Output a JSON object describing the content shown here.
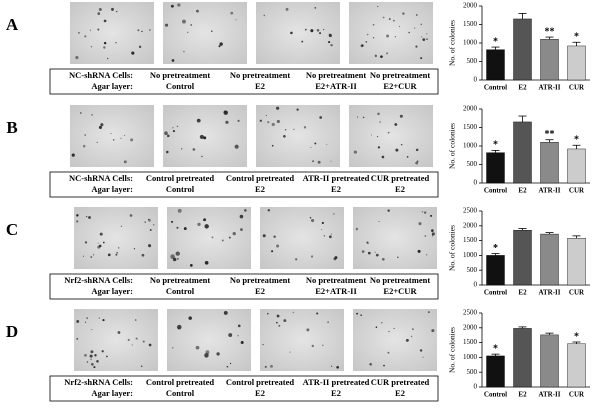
{
  "panels": [
    {
      "letter": "A",
      "cells_label": "NC-shRNA Cells:",
      "agar_label": "Agar layer:",
      "columns": [
        [
          "No pretreatment",
          "Control"
        ],
        [
          "No pretreatment",
          "E2"
        ],
        [
          "No pretreatment",
          "E2+ATR-II"
        ],
        [
          "No pretreatment",
          "E2+CUR"
        ]
      ]
    },
    {
      "letter": "B",
      "cells_label": "NC-shRNA Cells:",
      "agar_label": "Agar layer:",
      "columns": [
        [
          "Control pretreated",
          "Control"
        ],
        [
          "Control pretreated",
          "E2"
        ],
        [
          "ATR-II pretreated",
          "E2"
        ],
        [
          "CUR pretreated",
          "E2"
        ]
      ]
    },
    {
      "letter": "C",
      "cells_label": "Nrf2-shRNA Cells:",
      "agar_label": "Agar layer:",
      "columns": [
        [
          "No pretreatment",
          "Control"
        ],
        [
          "No pretreatment",
          "E2"
        ],
        [
          "No pretreatment",
          "E2+ATR-II"
        ],
        [
          "No pretreatment",
          "E2+CUR"
        ]
      ]
    },
    {
      "letter": "D",
      "cells_label": "Nrf2-shRNA Cells:",
      "agar_label": "Agar layer:",
      "columns": [
        [
          "Control pretreated",
          "Control"
        ],
        [
          "Control pretreated",
          "E2"
        ],
        [
          "ATR-II pretreated",
          "E2"
        ],
        [
          "CUR pretreated",
          "E2"
        ]
      ]
    }
  ],
  "chart_data": [
    {
      "type": "bar",
      "ylabel": "No. of colonies",
      "categories": [
        "Control",
        "E2",
        "ATR-II",
        "CUR"
      ],
      "colors": [
        "#111111",
        "#555555",
        "#8a8a8a",
        "#cccccc"
      ],
      "values": [
        820,
        1650,
        1100,
        920
      ],
      "errors": [
        70,
        150,
        60,
        100
      ],
      "annotations": [
        "*",
        null,
        "**",
        "*"
      ],
      "ylim": [
        0,
        2000
      ],
      "yticks": [
        0,
        500,
        1000,
        1500,
        2000
      ]
    },
    {
      "type": "bar",
      "ylabel": "No. of colonies",
      "categories": [
        "Control",
        "E2",
        "ATR-II",
        "CUR"
      ],
      "colors": [
        "#111111",
        "#555555",
        "#8a8a8a",
        "#cccccc"
      ],
      "values": [
        820,
        1650,
        1100,
        920
      ],
      "errors": [
        60,
        160,
        70,
        100
      ],
      "annotations": [
        "*",
        null,
        "**",
        "*"
      ],
      "ylim": [
        0,
        2000
      ],
      "yticks": [
        0,
        500,
        1000,
        1500,
        2000
      ]
    },
    {
      "type": "bar",
      "ylabel": "No. of colonies",
      "categories": [
        "Control",
        "E2",
        "ATR-II",
        "CUR"
      ],
      "colors": [
        "#111111",
        "#555555",
        "#8a8a8a",
        "#cccccc"
      ],
      "values": [
        1000,
        1850,
        1720,
        1580
      ],
      "errors": [
        60,
        60,
        50,
        80
      ],
      "annotations": [
        "*",
        null,
        null,
        null
      ],
      "ylim": [
        0,
        2500
      ],
      "yticks": [
        0,
        500,
        1000,
        1500,
        2000,
        2500
      ]
    },
    {
      "type": "bar",
      "ylabel": "No. of colonies",
      "categories": [
        "Control",
        "E2",
        "ATR-II",
        "CUR"
      ],
      "colors": [
        "#111111",
        "#555555",
        "#8a8a8a",
        "#cccccc"
      ],
      "values": [
        1050,
        1980,
        1760,
        1460
      ],
      "errors": [
        60,
        50,
        60,
        60
      ],
      "annotations": [
        "*",
        null,
        null,
        "*"
      ],
      "ylim": [
        0,
        2500
      ],
      "yticks": [
        0,
        500,
        1000,
        1500,
        2000,
        2500
      ]
    }
  ]
}
